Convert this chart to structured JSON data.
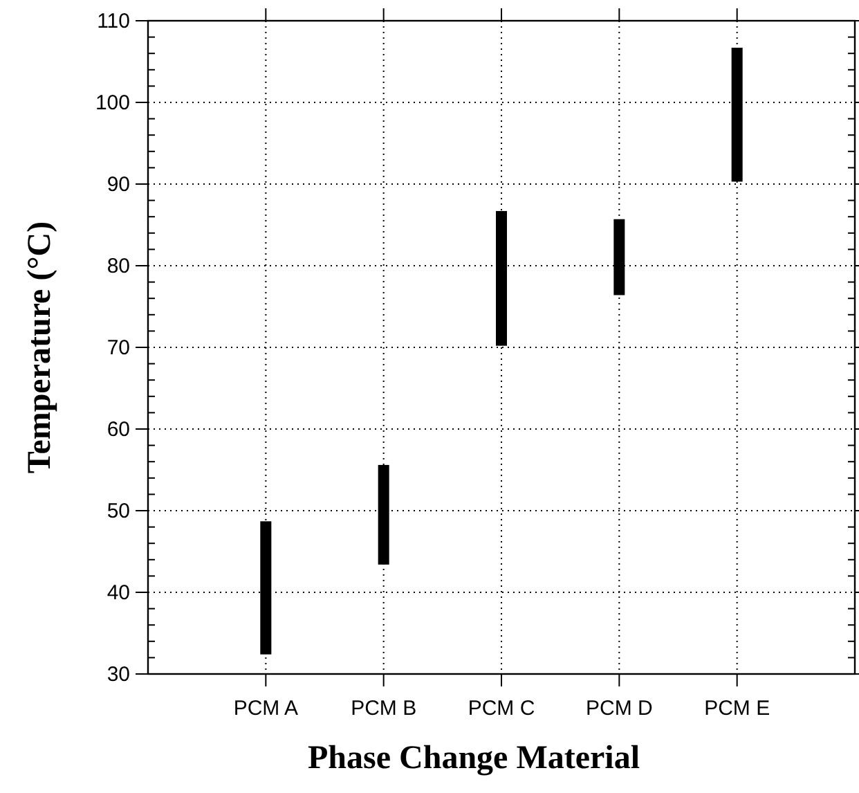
{
  "chart_data": {
    "type": "bar",
    "xlabel": "Phase Change Material",
    "ylabel": "Temperature (°C)",
    "categories": [
      "PCM A",
      "PCM B",
      "PCM C",
      "PCM D",
      "PCM E"
    ],
    "base": [
      32.4,
      43.4,
      70.2,
      76.4,
      90.3
    ],
    "values": [
      16.3,
      12.2,
      16.5,
      9.3,
      16.4
    ],
    "color": "#000000",
    "ylim": [
      30,
      110
    ],
    "yticks": [
      30,
      40,
      50,
      60,
      70,
      80,
      90,
      100,
      110
    ],
    "grid": true
  }
}
